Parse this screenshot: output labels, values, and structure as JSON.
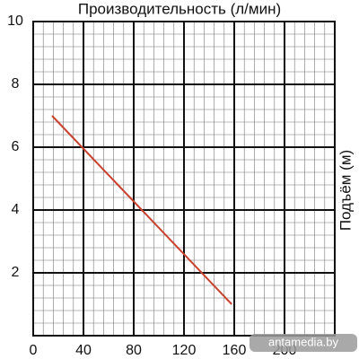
{
  "chart_data": {
    "type": "line",
    "title": "Производительность (л/мин)",
    "y_label": "Подъём (м)",
    "x": [
      15,
      158
    ],
    "series": [
      {
        "name": "Подъём",
        "color": "#c9412f",
        "values": [
          7,
          1
        ]
      }
    ],
    "xlim": [
      0,
      240
    ],
    "xticks": [
      0,
      40,
      80,
      120,
      160,
      200
    ],
    "ylim": [
      0,
      10
    ],
    "yticks": [
      2,
      4,
      6,
      8,
      10
    ],
    "grid": true,
    "minor_divisions": 5,
    "watermark": "antamedia.by"
  }
}
